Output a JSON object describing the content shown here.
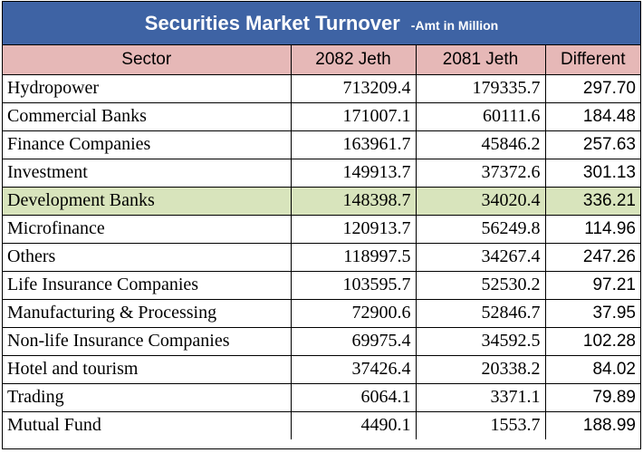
{
  "title": {
    "main": "Securities Market Turnover",
    "sub": "-Amt in Million"
  },
  "headers": {
    "sector": "Sector",
    "col_a": "2082 Jeth",
    "col_b": "2081 Jeth",
    "col_c": "Different"
  },
  "highlight_color": "#d8e4bc",
  "header_color": "#e6b8b7",
  "title_color": "#3e63a4",
  "rows": [
    {
      "sector": "Hydropower",
      "a": "713209.4",
      "b": "179335.7",
      "diff": "297.70",
      "highlight": false
    },
    {
      "sector": "Commercial Banks",
      "a": "171007.1",
      "b": "60111.6",
      "diff": "184.48",
      "highlight": false
    },
    {
      "sector": "Finance Companies",
      "a": "163961.7",
      "b": "45846.2",
      "diff": "257.63",
      "highlight": false
    },
    {
      "sector": "Investment",
      "a": "149913.7",
      "b": "37372.6",
      "diff": "301.13",
      "highlight": false
    },
    {
      "sector": "Development Banks",
      "a": "148398.7",
      "b": "34020.4",
      "diff": "336.21",
      "highlight": true
    },
    {
      "sector": "Microfinance",
      "a": "120913.7",
      "b": "56249.8",
      "diff": "114.96",
      "highlight": false
    },
    {
      "sector": "Others",
      "a": "118997.5",
      "b": "34267.4",
      "diff": "247.26",
      "highlight": false
    },
    {
      "sector": "Life Insurance Companies",
      "a": "103595.7",
      "b": "52530.2",
      "diff": "97.21",
      "highlight": false
    },
    {
      "sector": "Manufacturing & Processing",
      "a": "72900.6",
      "b": "52846.7",
      "diff": "37.95",
      "highlight": false
    },
    {
      "sector": "Non-life Insurance Companies",
      "a": "69975.4",
      "b": "34592.5",
      "diff": "102.28",
      "highlight": false
    },
    {
      "sector": "Hotel and tourism",
      "a": "37426.4",
      "b": "20338.2",
      "diff": "84.02",
      "highlight": false
    },
    {
      "sector": "Trading",
      "a": "6064.1",
      "b": "3371.1",
      "diff": "79.89",
      "highlight": false
    },
    {
      "sector": "Mutual Fund",
      "a": "4490.1",
      "b": "1553.7",
      "diff": "188.99",
      "highlight": false
    }
  ]
}
